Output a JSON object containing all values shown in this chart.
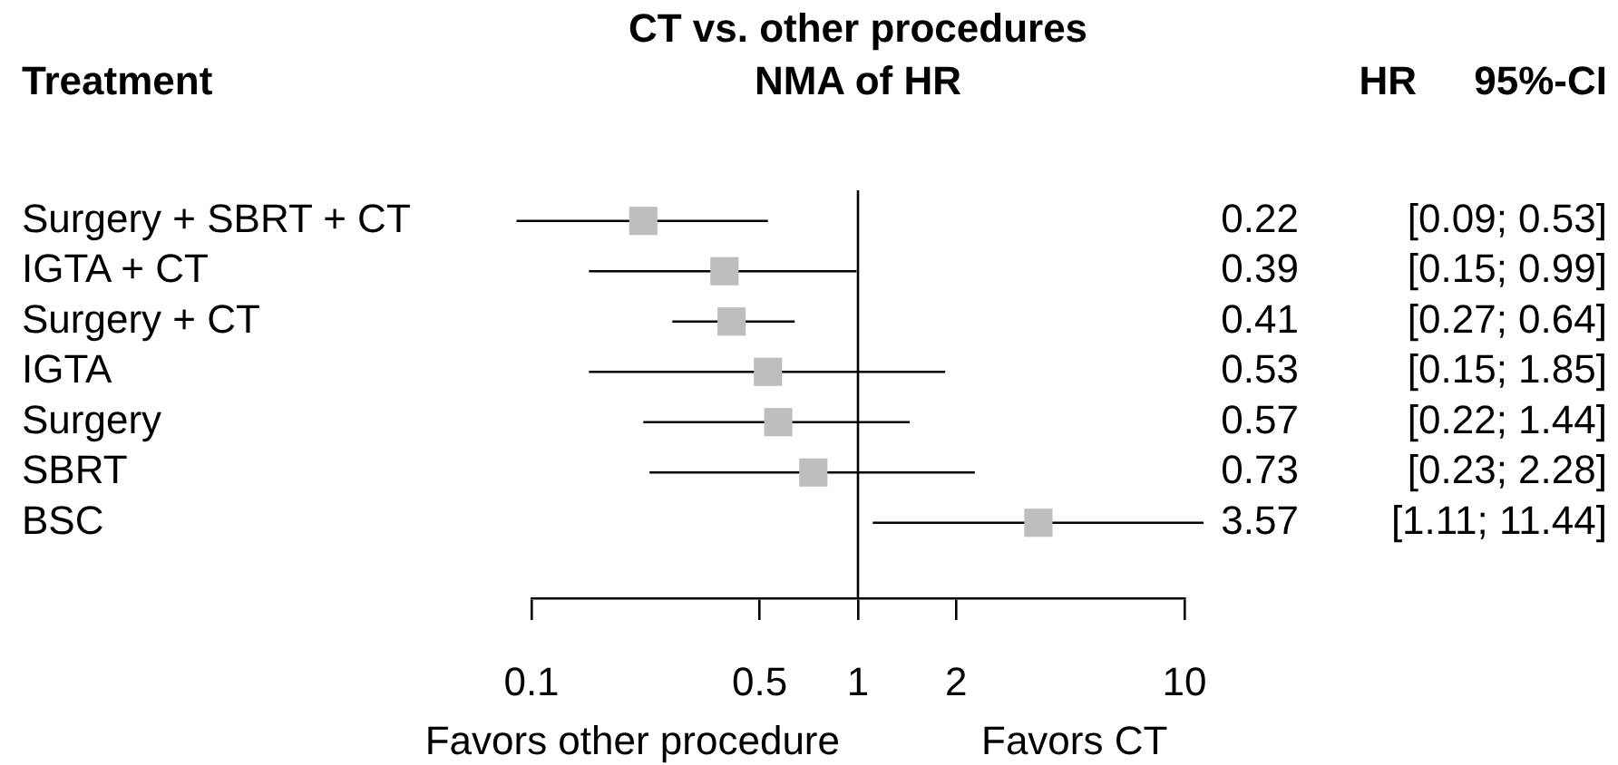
{
  "chart_data": {
    "type": "scatter",
    "title": "CT vs. other procedures",
    "subtitle": "NMA of HR",
    "ylabel": "Treatment",
    "orientation": "horizontal",
    "categories": [
      "Surgery + SBRT + CT",
      "IGTA + CT",
      "Surgery + CT",
      "IGTA",
      "Surgery",
      "SBRT",
      "BSC"
    ],
    "series": [
      {
        "color": "#bebebe",
        "values": [
          0.22,
          0.39,
          0.41,
          0.53,
          0.57,
          0.73,
          3.57
        ],
        "errors": [
          [
            0.09,
            0.53
          ],
          [
            0.15,
            0.99
          ],
          [
            0.27,
            0.64
          ],
          [
            0.15,
            1.85
          ],
          [
            0.22,
            1.44
          ],
          [
            0.23,
            2.28
          ],
          [
            1.11,
            11.44
          ]
        ]
      }
    ],
    "log": "x",
    "xlim": [
      0.1,
      10
    ],
    "xticks": [
      0.1,
      0.5,
      1,
      2,
      10
    ],
    "ref_lines": [
      {
        "axis": "x",
        "value": 1,
        "color": "#000000"
      }
    ],
    "data_labels": true,
    "marker": "square",
    "grid": false,
    "legend": false,
    "annotations": [
      "HR",
      "95%-CI",
      "[0.09; 0.53]",
      "[0.15; 0.99]",
      "[0.27; 0.64]",
      "[0.15; 1.85]",
      "[0.22; 1.44]",
      "[0.23; 2.28]",
      "[1.11; 11.44]",
      "Favors other procedure",
      "Favors CT"
    ]
  }
}
